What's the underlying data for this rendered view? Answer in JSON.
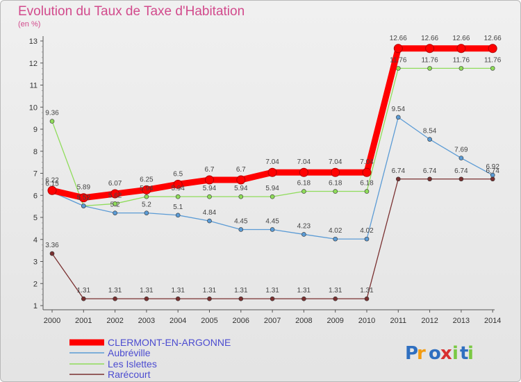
{
  "header": {
    "title": "Evolution du Taux de Taxe d'Habitation",
    "subtitle": "(en %)"
  },
  "logo": {
    "text": "Proxiti"
  },
  "chart_data": {
    "type": "line",
    "title": "Evolution du Taux de Taxe d'Habitation",
    "subtitle": "(en %)",
    "x": [
      "2000",
      "2001",
      "2002",
      "2003",
      "2004",
      "2005",
      "2006",
      "2007",
      "2008",
      "2009",
      "2010",
      "2011",
      "2012",
      "2013",
      "2014"
    ],
    "yticks": [
      "1",
      "2",
      "3",
      "4",
      "5",
      "6",
      "7",
      "8",
      "9",
      "10",
      "11",
      "12",
      "13"
    ],
    "ylim": [
      1,
      13
    ],
    "grid": false,
    "legend_position": "bottom",
    "series": [
      {
        "name": "CLERMONT-EN-ARGONNE",
        "color": "#ff0000",
        "values": [
          6.22,
          5.89,
          6.07,
          6.25,
          6.5,
          6.7,
          6.7,
          7.04,
          7.04,
          7.04,
          7.04,
          12.66,
          12.66,
          12.66,
          12.66
        ],
        "labels": [
          "6.22",
          "5.89",
          "6.07",
          "6.25",
          "6.5",
          "6.7",
          "6.7",
          "7.04",
          "7.04",
          "7.04",
          "7.04",
          "12.66",
          "12.66",
          "12.66",
          "12.66"
        ]
      },
      {
        "name": "Aubréville",
        "color": "#5b9bd5",
        "values": [
          6.15,
          5.52,
          5.2,
          5.2,
          5.1,
          4.84,
          4.45,
          4.45,
          4.23,
          4.02,
          4.02,
          9.54,
          8.54,
          7.69,
          6.92
        ],
        "labels": [
          "6.15",
          "5.52",
          "5.2",
          "5.2",
          "5.1",
          "4.84",
          "4.45",
          "4.45",
          "4.23",
          "4.02",
          "4.02",
          "9.54",
          "8.54",
          "7.69",
          "6.92"
        ]
      },
      {
        "name": "Les Islettes",
        "color": "#8fdc5a",
        "values": [
          9.36,
          5.52,
          5.62,
          5.94,
          5.94,
          5.94,
          5.94,
          5.94,
          6.18,
          6.18,
          6.18,
          11.76,
          11.76,
          11.76,
          11.76
        ],
        "labels": [
          "9.36",
          "5.52",
          "5.62",
          "5.94",
          "5.94",
          "5.94",
          "5.94",
          "5.94",
          "6.18",
          "6.18",
          "6.18",
          "11.76",
          "11.76",
          "11.76",
          "11.76"
        ]
      },
      {
        "name": "Rarécourt",
        "color": "#7a3030",
        "values": [
          3.36,
          1.31,
          1.31,
          1.31,
          1.31,
          1.31,
          1.31,
          1.31,
          1.31,
          1.31,
          1.31,
          6.74,
          6.74,
          6.74,
          6.74
        ],
        "labels": [
          "3.36",
          "1.31",
          "1.31",
          "1.31",
          "1.31",
          "1.31",
          "1.31",
          "1.31",
          "1.31",
          "1.31",
          "1.31",
          "6.74",
          "6.74",
          "6.74",
          "6.74"
        ]
      }
    ]
  }
}
